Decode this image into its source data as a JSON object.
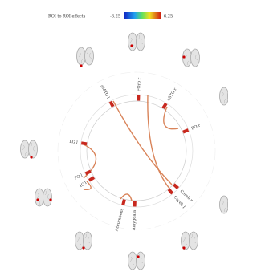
{
  "header": {
    "title": "ROI to ROI effects",
    "colorbar_min": "-6.25",
    "colorbar_max": "6.25"
  },
  "nodes": [
    {
      "label": "aMTG l"
    },
    {
      "label": "FOrb r"
    },
    {
      "label": "aSTG r"
    },
    {
      "label": "PO r"
    },
    {
      "label": "Cereb r"
    },
    {
      "label": "Cereb l"
    },
    {
      "label": "Amygdala"
    },
    {
      "label": "Accumbens"
    },
    {
      "label": "IC l"
    },
    {
      "label": "PO l"
    },
    {
      "label": "LG l"
    }
  ]
}
